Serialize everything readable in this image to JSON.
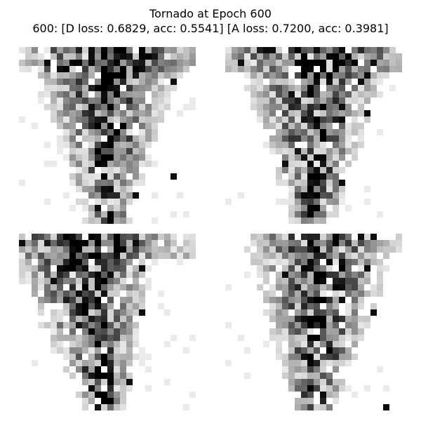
{
  "figure": {
    "title": "Tornado at Epoch 600",
    "subtitle": "600: [D loss: 0.6829, acc: 0.5541]  [A loss: 0.7200, acc: 0.3981]"
  },
  "colormap": "gray_r",
  "samples": [
    {
      "seed": 11,
      "pattern": "top-wide"
    },
    {
      "seed": 29,
      "pattern": "funnel"
    },
    {
      "seed": 47,
      "pattern": "left-heavy"
    },
    {
      "seed": 83,
      "pattern": "sparse-right"
    }
  ]
}
